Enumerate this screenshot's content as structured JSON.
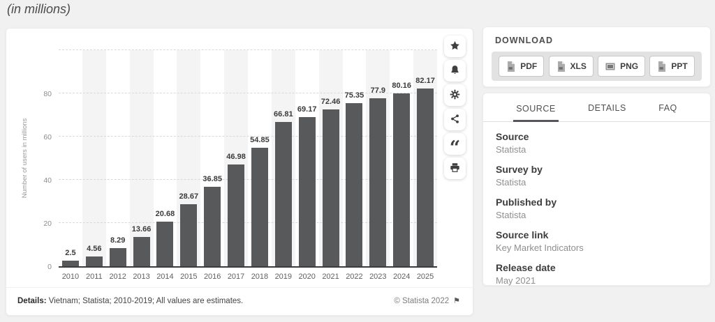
{
  "chart_data": {
    "type": "bar",
    "title": "(in millions)",
    "categories": [
      "2010",
      "2011",
      "2012",
      "2013",
      "2014",
      "2015",
      "2016",
      "2017",
      "2018",
      "2019",
      "2020",
      "2021",
      "2022",
      "2023",
      "2024",
      "2025"
    ],
    "values": [
      2.5,
      4.56,
      8.29,
      13.66,
      20.68,
      28.67,
      36.85,
      46.98,
      54.85,
      66.81,
      69.17,
      72.46,
      75.35,
      77.9,
      80.16,
      82.17
    ],
    "xlabel": "",
    "ylabel": "Number of users in millions",
    "ylim": [
      0,
      100
    ],
    "yticks": [
      0,
      20,
      40,
      60,
      80
    ],
    "grid": "dashed horizontal",
    "legend": "none",
    "bar_color": "#58595b",
    "stripe_color": "#f4f4f5",
    "alternating_column_bands": true
  },
  "chart_card": {
    "footer": {
      "details_label": "Details:",
      "details_text": " Vietnam; Statista; 2010-2019; All values are estimates.",
      "copyright": "© Statista 2022",
      "flag_icon": "report-flag"
    },
    "action_toolbar_icons": [
      "favorite-star",
      "alert-bell",
      "settings-gear",
      "share",
      "citation-quote",
      "print"
    ]
  },
  "download": {
    "title": "DOWNLOAD",
    "buttons": [
      {
        "label": "PDF",
        "icon": "file-document-icon"
      },
      {
        "label": "XLS",
        "icon": "file-document-icon"
      },
      {
        "label": "PNG",
        "icon": "image-file-icon"
      },
      {
        "label": "PPT",
        "icon": "file-document-icon"
      }
    ]
  },
  "source_panel": {
    "tabs": [
      {
        "label": "SOURCE",
        "active": true
      },
      {
        "label": "DETAILS",
        "active": false
      },
      {
        "label": "FAQ",
        "active": false
      }
    ],
    "fields": [
      {
        "label": "Source",
        "value": "Statista",
        "link": false
      },
      {
        "label": "Survey by",
        "value": "Statista",
        "link": false
      },
      {
        "label": "Published by",
        "value": "Statista",
        "link": false
      },
      {
        "label": "Source link",
        "value": "Key Market Indicators",
        "link": true
      },
      {
        "label": "Release date",
        "value": "May 2021",
        "link": false
      }
    ]
  }
}
